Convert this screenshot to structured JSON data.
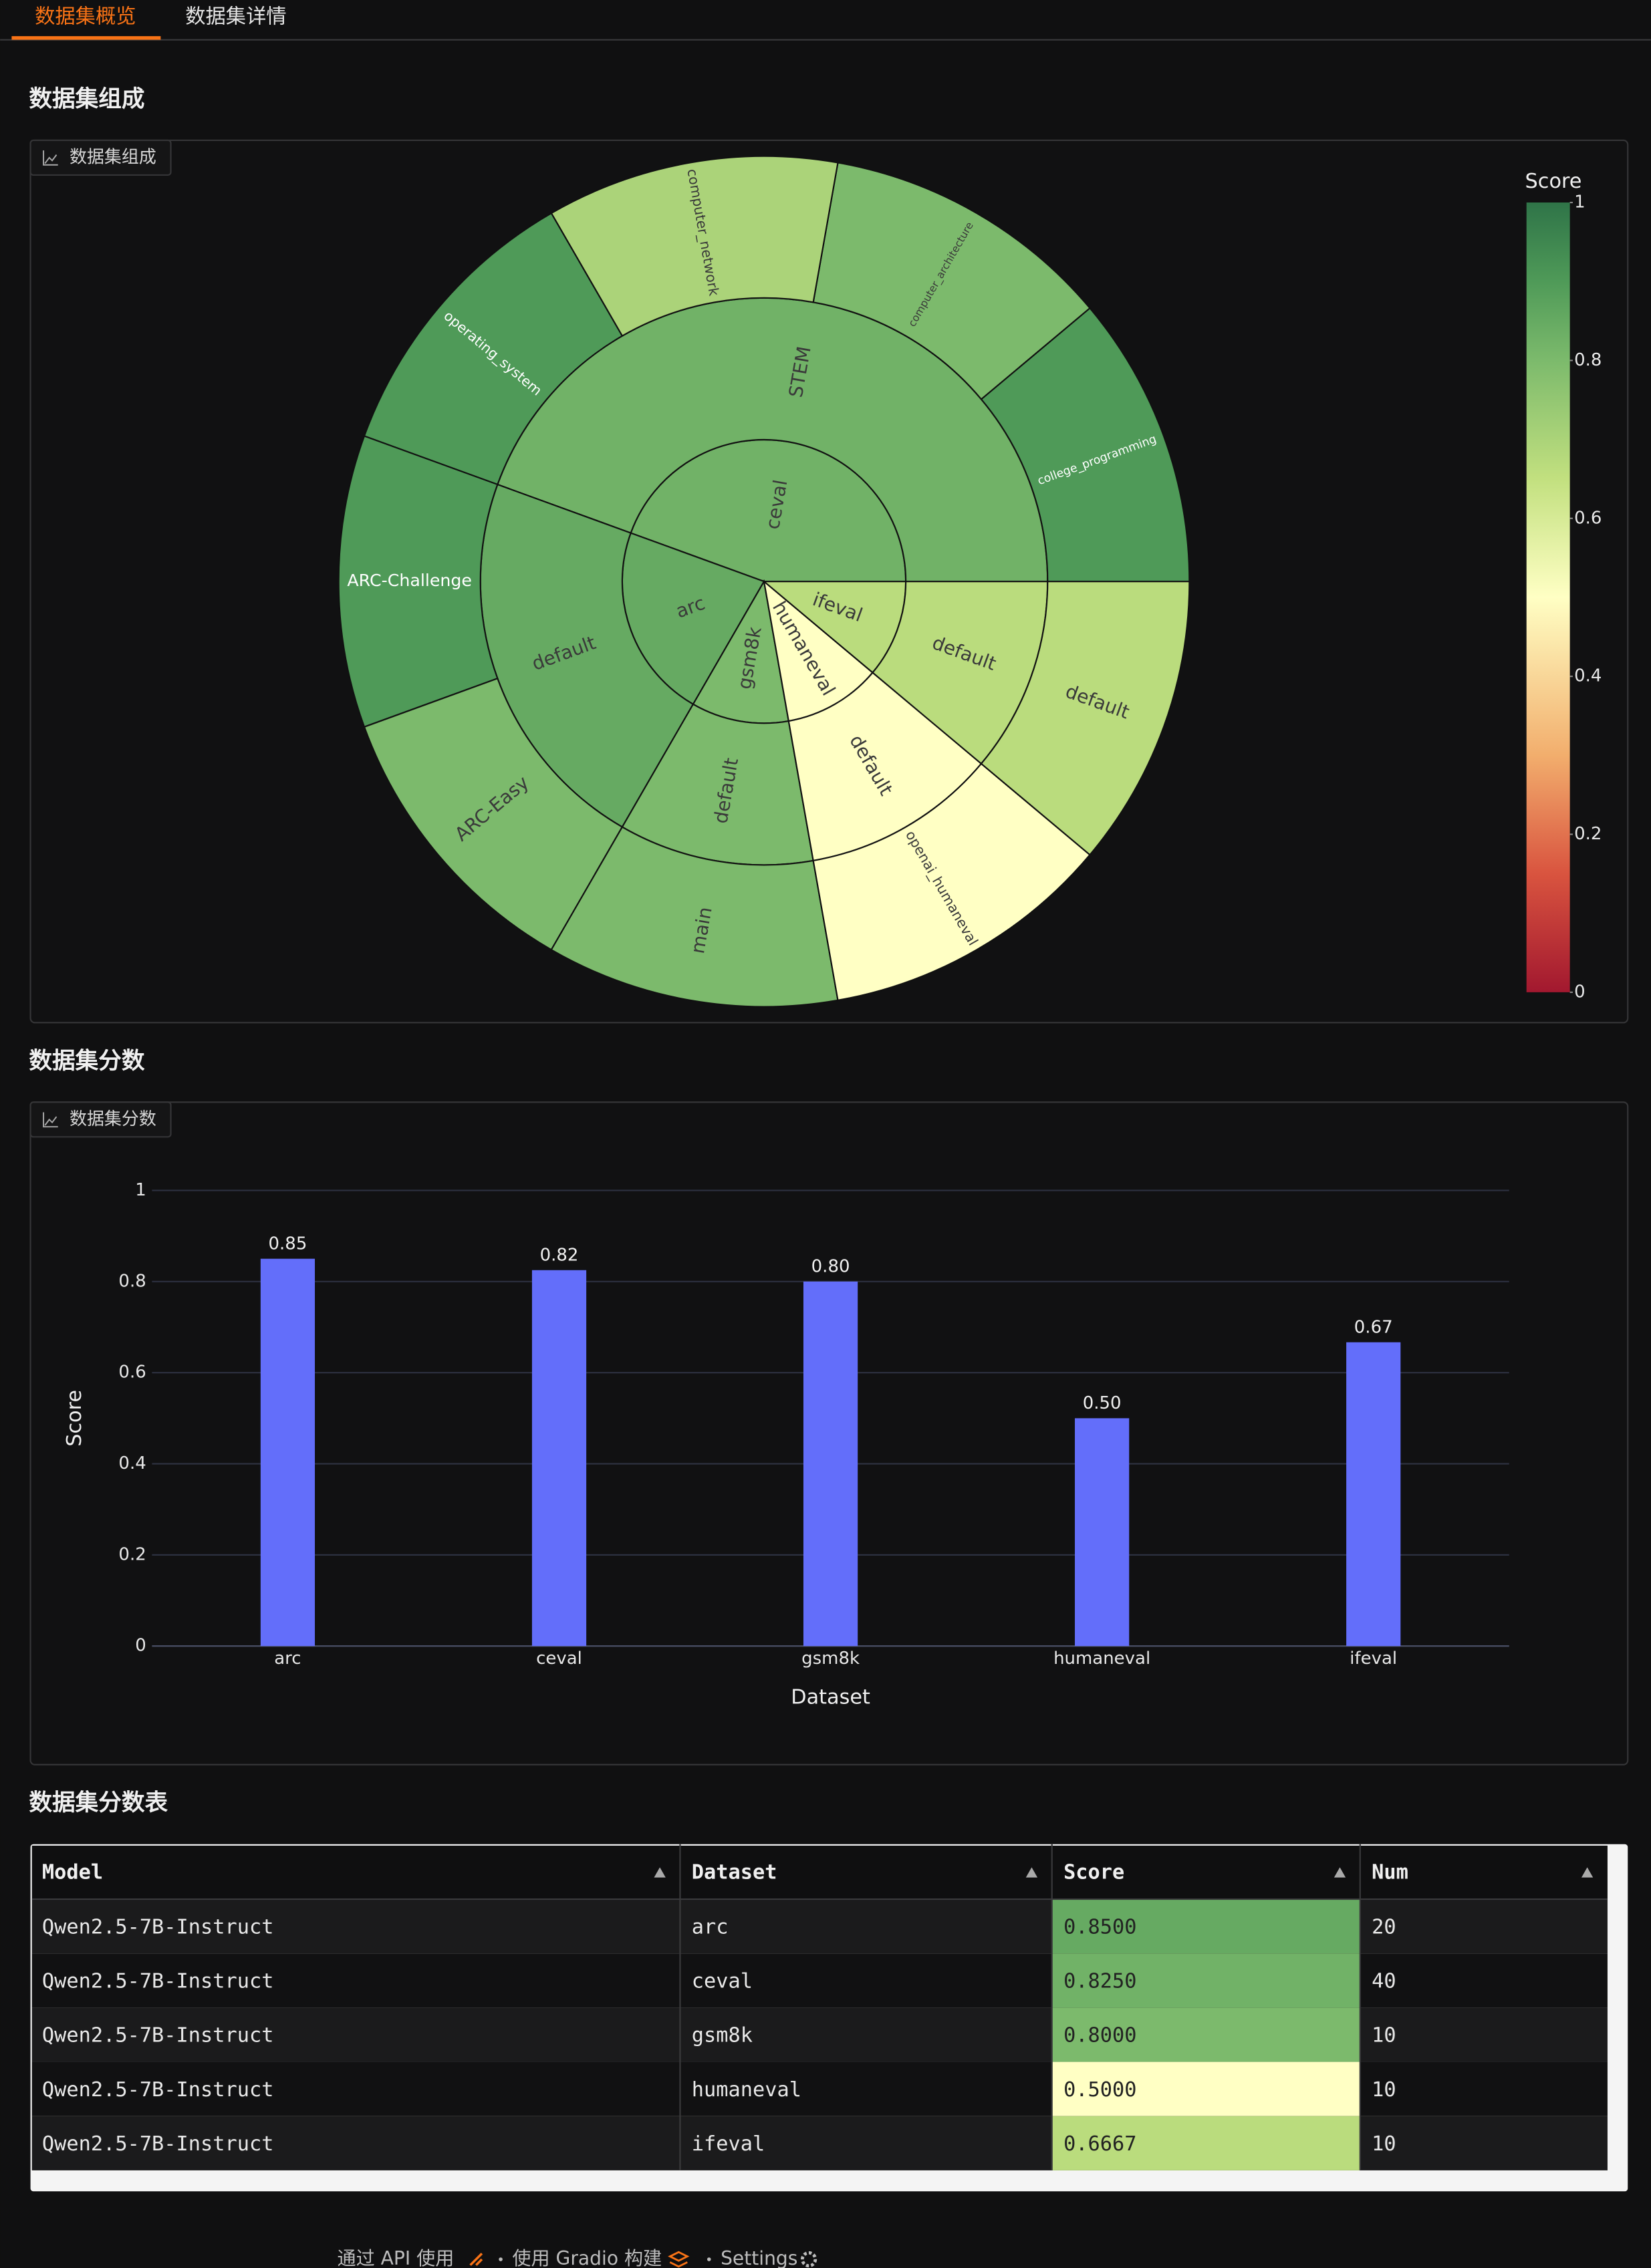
{
  "tabs": [
    "数据集概览",
    "数据集详情"
  ],
  "sections": [
    "数据集组成",
    "数据集分数",
    "数据集分数表"
  ],
  "chart_data": [
    {
      "type": "sunburst",
      "panel_label": "数据集组成",
      "colorbar_title": "Score",
      "clim": [
        0,
        1
      ],
      "colorbar_ticks": [
        0,
        0.2,
        0.4,
        0.6,
        0.8,
        1
      ],
      "colorscale": [
        [
          0,
          "#a2182f"
        ],
        [
          0.15,
          "#d9543f"
        ],
        [
          0.3,
          "#f2ae6d"
        ],
        [
          0.5,
          "#ffffc4"
        ],
        [
          0.65,
          "#c2e07f"
        ],
        [
          0.8,
          "#7cba6c"
        ],
        [
          0.9,
          "#4f9a58"
        ],
        [
          1,
          "#2f7448"
        ]
      ],
      "nodes": [
        {
          "label": "ceval",
          "value": 40,
          "score": 0.825,
          "children": [
            {
              "label": "STEM",
              "value": 40,
              "score": 0.825,
              "children": [
                {
                  "label": "college_programming",
                  "value": 10,
                  "score": 0.9
                },
                {
                  "label": "computer_architecture",
                  "value": 10,
                  "score": 0.8
                },
                {
                  "label": "computer_network",
                  "value": 10,
                  "score": 0.7
                },
                {
                  "label": "operating_system",
                  "value": 10,
                  "score": 0.9
                }
              ]
            }
          ]
        },
        {
          "label": "arc",
          "value": 20,
          "score": 0.85,
          "children": [
            {
              "label": "default",
              "value": 20,
              "score": 0.85,
              "children": [
                {
                  "label": "ARC-Challenge",
                  "value": 10,
                  "score": 0.9
                },
                {
                  "label": "ARC-Easy",
                  "value": 10,
                  "score": 0.8
                }
              ]
            }
          ]
        },
        {
          "label": "gsm8k",
          "value": 10,
          "score": 0.8,
          "children": [
            {
              "label": "default",
              "value": 10,
              "score": 0.8,
              "children": [
                {
                  "label": "main",
                  "value": 10,
                  "score": 0.8
                }
              ]
            }
          ]
        },
        {
          "label": "humaneval",
          "value": 10,
          "score": 0.5,
          "children": [
            {
              "label": "default",
              "value": 10,
              "score": 0.5,
              "children": [
                {
                  "label": "openai_humaneval",
                  "value": 10,
                  "score": 0.5
                }
              ]
            }
          ]
        },
        {
          "label": "ifeval",
          "value": 10,
          "score": 0.6667,
          "children": [
            {
              "label": "default",
              "value": 10,
              "score": 0.6667,
              "children": [
                {
                  "label": "default",
                  "value": 10,
                  "score": 0.6667
                }
              ]
            }
          ]
        }
      ]
    },
    {
      "type": "bar",
      "panel_label": "数据集分数",
      "categories": [
        "arc",
        "ceval",
        "gsm8k",
        "humaneval",
        "ifeval"
      ],
      "values": [
        0.85,
        0.825,
        0.8,
        0.5,
        0.6667
      ],
      "value_labels": [
        "0.85",
        "0.82",
        "0.80",
        "0.50",
        "0.67"
      ],
      "color": "#636efa",
      "ylim": [
        0,
        1
      ],
      "yticks": [
        0,
        0.2,
        0.4,
        0.6,
        0.8,
        1
      ],
      "xlabel": "Dataset",
      "ylabel": "Score",
      "grid": true
    }
  ],
  "table": {
    "headers": [
      "Model",
      "Dataset",
      "Score",
      "Num"
    ],
    "rows": [
      [
        "Qwen2.5-7B-Instruct",
        "arc",
        "0.8500",
        "20"
      ],
      [
        "Qwen2.5-7B-Instruct",
        "ceval",
        "0.8250",
        "40"
      ],
      [
        "Qwen2.5-7B-Instruct",
        "gsm8k",
        "0.8000",
        "10"
      ],
      [
        "Qwen2.5-7B-Instruct",
        "humaneval",
        "0.5000",
        "10"
      ],
      [
        "Qwen2.5-7B-Instruct",
        "ifeval",
        "0.6667",
        "10"
      ]
    ]
  },
  "footer": [
    "通过 API 使用",
    "使用 Gradio 构建",
    "Settings"
  ]
}
